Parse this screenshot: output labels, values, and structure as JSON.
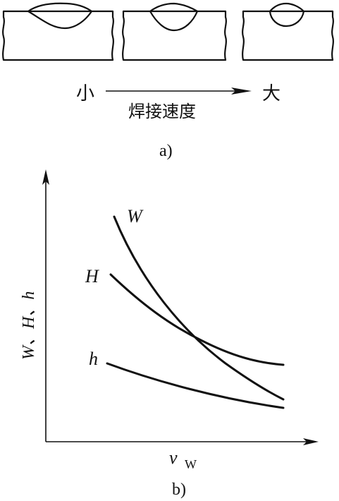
{
  "part_a": {
    "label_small": "小",
    "label_large": "大",
    "axis_label": "焊接速度",
    "caption": "a)"
  },
  "part_b": {
    "caption": "b)",
    "y_axis_label": "W、H、h",
    "x_axis_label_main": "v",
    "x_axis_label_sub": "W",
    "curves": [
      {
        "name": "W",
        "trend": "decreasing"
      },
      {
        "name": "H",
        "trend": "decreasing"
      },
      {
        "name": "h",
        "trend": "decreasing"
      }
    ]
  },
  "colors": {
    "ink": "#111111",
    "background": "#ffffff"
  }
}
